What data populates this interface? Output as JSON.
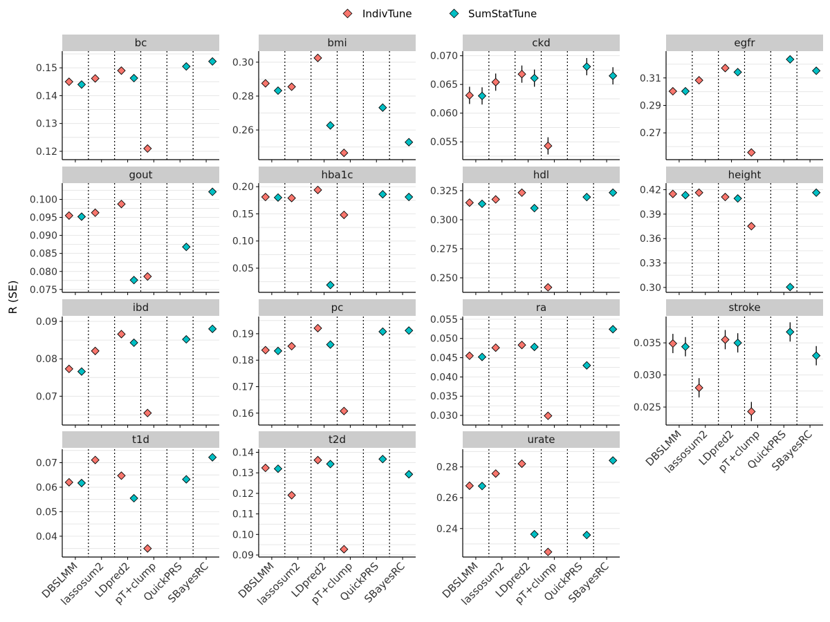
{
  "legend": {
    "position": "top",
    "items": [
      {
        "label": "IndivTune",
        "color": "#F8766D"
      },
      {
        "label": "SumStatTune",
        "color": "#00BFC4"
      }
    ]
  },
  "ylabel": "R (SE)",
  "methods": [
    "DBSLMM",
    "lassosum2",
    "LDpred2",
    "pT+clump",
    "QuickPRS",
    "SBayesRC"
  ],
  "colors": {
    "IndivTune": "#F8766D",
    "SumStatTune": "#00BFC4",
    "strip": "#cccccc",
    "grid": "#e6e6e6",
    "axis": "#000000"
  },
  "chart_data": [
    {
      "type": "scatter",
      "title": "bc",
      "ylim": [
        0.117,
        0.156
      ],
      "yticks": [
        0.12,
        0.13,
        0.14,
        0.15
      ],
      "ytick_labels": [
        "0.12",
        "0.13",
        "0.14",
        "0.15"
      ],
      "series": [
        {
          "name": "IndivTune",
          "values": [
            0.145,
            0.1462,
            0.149,
            0.121,
            null,
            null
          ],
          "se": [
            0.0012,
            0.0012,
            0.0012,
            0.0012,
            null,
            null
          ]
        },
        {
          "name": "SumStatTune",
          "values": [
            0.144,
            null,
            0.1463,
            null,
            0.1505,
            0.1523
          ],
          "se": [
            0.0012,
            null,
            0.0012,
            null,
            0.0012,
            0.0012
          ]
        }
      ]
    },
    {
      "type": "scatter",
      "title": "bmi",
      "ylim": [
        0.2425,
        0.3065
      ],
      "yticks": [
        0.26,
        0.28,
        0.3
      ],
      "ytick_labels": [
        "0.26",
        "0.28",
        "0.30"
      ],
      "series": [
        {
          "name": "IndivTune",
          "values": [
            0.2875,
            0.2855,
            0.3025,
            0.2465,
            null,
            null
          ],
          "se": [
            0.0006,
            0.0006,
            0.0006,
            0.0006,
            null,
            null
          ]
        },
        {
          "name": "SumStatTune",
          "values": [
            0.2832,
            null,
            0.2627,
            null,
            0.2732,
            0.2528
          ],
          "se": [
            0.0006,
            null,
            0.0006,
            null,
            0.0006,
            0.0006
          ]
        }
      ]
    },
    {
      "type": "scatter",
      "title": "ckd",
      "ylim": [
        0.0519,
        0.0708
      ],
      "yticks": [
        0.055,
        0.06,
        0.065,
        0.07
      ],
      "ytick_labels": [
        "0.055",
        "0.060",
        "0.065",
        "0.070"
      ],
      "series": [
        {
          "name": "IndivTune",
          "values": [
            0.0631,
            0.0654,
            0.0668,
            0.0543,
            null,
            null
          ],
          "se": [
            0.0015,
            0.0015,
            0.0015,
            0.0015,
            null,
            null
          ]
        },
        {
          "name": "SumStatTune",
          "values": [
            0.063,
            null,
            0.0661,
            null,
            0.0681,
            0.0665
          ],
          "se": [
            0.0015,
            null,
            0.0015,
            null,
            0.0015,
            0.0015
          ]
        }
      ]
    },
    {
      "type": "scatter",
      "title": "egfr",
      "ylim": [
        0.2505,
        0.3295
      ],
      "yticks": [
        0.27,
        0.29,
        0.31
      ],
      "ytick_labels": [
        "0.27",
        "0.29",
        "0.31"
      ],
      "series": [
        {
          "name": "IndivTune",
          "values": [
            0.3003,
            0.3083,
            0.3172,
            0.2557,
            null,
            null
          ],
          "se": [
            0.0005,
            0.0005,
            0.0005,
            0.0005,
            null,
            null
          ]
        },
        {
          "name": "SumStatTune",
          "values": [
            0.3003,
            null,
            0.3142,
            null,
            0.3235,
            0.3152
          ],
          "se": [
            0.0005,
            null,
            0.0005,
            null,
            0.0005,
            0.0005
          ]
        }
      ]
    },
    {
      "type": "scatter",
      "title": "gout",
      "ylim": [
        0.0742,
        0.1045
      ],
      "yticks": [
        0.075,
        0.08,
        0.085,
        0.09,
        0.095,
        0.1
      ],
      "ytick_labels": [
        "0.075",
        "0.080",
        "0.085",
        "0.090",
        "0.095",
        "0.100"
      ],
      "series": [
        {
          "name": "IndivTune",
          "values": [
            0.0955,
            0.0963,
            0.0987,
            0.0786,
            null,
            null
          ],
          "se": [
            0.0009,
            0.0009,
            0.0009,
            0.0009,
            null,
            null
          ]
        },
        {
          "name": "SumStatTune",
          "values": [
            0.0952,
            null,
            0.0776,
            null,
            0.0868,
            0.1021
          ],
          "se": [
            0.0009,
            null,
            0.0009,
            null,
            0.0009,
            0.0009
          ]
        }
      ]
    },
    {
      "type": "scatter",
      "title": "hba1c",
      "ylim": [
        0.0055,
        0.2065
      ],
      "yticks": [
        0.05,
        0.1,
        0.15,
        0.2
      ],
      "ytick_labels": [
        "0.05",
        "0.10",
        "0.15",
        "0.20"
      ],
      "series": [
        {
          "name": "IndivTune",
          "values": [
            0.181,
            0.179,
            0.194,
            0.148,
            null,
            null
          ],
          "se": [
            0.0014,
            0.0014,
            0.0014,
            0.0014,
            null,
            null
          ]
        },
        {
          "name": "SumStatTune",
          "values": [
            0.18,
            null,
            0.019,
            null,
            0.186,
            0.181
          ],
          "se": [
            0.0014,
            null,
            0.0014,
            null,
            0.0014,
            0.0014
          ]
        }
      ]
    },
    {
      "type": "scatter",
      "title": "hdl",
      "ylim": [
        0.2375,
        0.3315
      ],
      "yticks": [
        0.25,
        0.275,
        0.3,
        0.325
      ],
      "ytick_labels": [
        "0.250",
        "0.275",
        "0.300",
        "0.325"
      ],
      "series": [
        {
          "name": "IndivTune",
          "values": [
            0.3147,
            0.3175,
            0.3233,
            0.2418,
            null,
            null
          ],
          "se": [
            0.0005,
            0.0005,
            0.0005,
            0.0005,
            null,
            null
          ]
        },
        {
          "name": "SumStatTune",
          "values": [
            0.3137,
            null,
            0.31,
            null,
            0.3195,
            0.3233
          ],
          "se": [
            0.0005,
            null,
            0.0005,
            null,
            0.0005,
            0.0005
          ]
        }
      ]
    },
    {
      "type": "scatter",
      "title": "height",
      "ylim": [
        0.294,
        0.428
      ],
      "yticks": [
        0.3,
        0.33,
        0.36,
        0.39,
        0.42
      ],
      "ytick_labels": [
        "0.30",
        "0.33",
        "0.36",
        "0.39",
        "0.42"
      ],
      "series": [
        {
          "name": "IndivTune",
          "values": [
            0.4148,
            0.4163,
            0.411,
            0.3752,
            null,
            null
          ],
          "se": [
            0.0004,
            0.0004,
            0.0004,
            0.0004,
            null,
            null
          ]
        },
        {
          "name": "SumStatTune",
          "values": [
            0.4133,
            null,
            0.4092,
            null,
            0.3005,
            0.4163
          ],
          "se": [
            0.0004,
            null,
            0.0004,
            null,
            0.0004,
            0.0004
          ]
        }
      ]
    },
    {
      "type": "scatter",
      "title": "ibd",
      "ylim": [
        0.0623,
        0.0913
      ],
      "yticks": [
        0.07,
        0.08,
        0.09
      ],
      "ytick_labels": [
        "0.07",
        "0.08",
        "0.09"
      ],
      "series": [
        {
          "name": "IndivTune",
          "values": [
            0.0773,
            0.0821,
            0.0866,
            0.0655,
            null,
            null
          ],
          "se": [
            0.0009,
            0.0009,
            0.0009,
            0.0009,
            null,
            null
          ]
        },
        {
          "name": "SumStatTune",
          "values": [
            0.0766,
            null,
            0.0843,
            null,
            0.0852,
            0.088
          ],
          "se": [
            0.0009,
            null,
            0.0009,
            null,
            0.0009,
            0.0009
          ]
        }
      ]
    },
    {
      "type": "scatter",
      "title": "pc",
      "ylim": [
        0.1555,
        0.1965
      ],
      "yticks": [
        0.16,
        0.17,
        0.18,
        0.19
      ],
      "ytick_labels": [
        "0.16",
        "0.17",
        "0.18",
        "0.19"
      ],
      "series": [
        {
          "name": "IndivTune",
          "values": [
            0.1838,
            0.1853,
            0.1921,
            0.1608,
            null,
            null
          ],
          "se": [
            0.0012,
            0.0012,
            0.0012,
            0.0012,
            null,
            null
          ]
        },
        {
          "name": "SumStatTune",
          "values": [
            0.1835,
            null,
            0.1859,
            null,
            0.1908,
            0.1912
          ],
          "se": [
            0.0012,
            null,
            0.0012,
            null,
            0.0012,
            0.0012
          ]
        }
      ]
    },
    {
      "type": "scatter",
      "title": "ra",
      "ylim": [
        0.0275,
        0.0557
      ],
      "yticks": [
        0.03,
        0.035,
        0.04,
        0.045,
        0.05,
        0.055
      ],
      "ytick_labels": [
        "0.030",
        "0.035",
        "0.040",
        "0.045",
        "0.050",
        "0.055"
      ],
      "series": [
        {
          "name": "IndivTune",
          "values": [
            0.0455,
            0.0476,
            0.0483,
            0.0299,
            null,
            null
          ],
          "se": [
            0.0009,
            0.0009,
            0.0009,
            0.0009,
            null,
            null
          ]
        },
        {
          "name": "SumStatTune",
          "values": [
            0.0452,
            null,
            0.0478,
            null,
            0.043,
            0.0524
          ],
          "se": [
            0.0009,
            null,
            0.0009,
            null,
            0.0009,
            0.0009
          ]
        }
      ]
    },
    {
      "type": "scatter",
      "title": "stroke",
      "ylim": [
        0.0222,
        0.0391
      ],
      "yticks": [
        0.025,
        0.03,
        0.035
      ],
      "ytick_labels": [
        "0.025",
        "0.030",
        "0.035"
      ],
      "series": [
        {
          "name": "IndivTune",
          "values": [
            0.0349,
            0.028,
            0.0355,
            0.0243,
            null,
            null
          ],
          "se": [
            0.0015,
            0.0015,
            0.0015,
            0.0015,
            null,
            null
          ]
        },
        {
          "name": "SumStatTune",
          "values": [
            0.0344,
            null,
            0.035,
            null,
            0.0367,
            0.033
          ],
          "se": [
            0.0015,
            null,
            0.0015,
            null,
            0.0015,
            0.0015
          ]
        }
      ]
    },
    {
      "type": "scatter",
      "title": "t1d",
      "ylim": [
        0.0315,
        0.0755
      ],
      "yticks": [
        0.04,
        0.05,
        0.06,
        0.07
      ],
      "ytick_labels": [
        "0.04",
        "0.05",
        "0.06",
        "0.07"
      ],
      "series": [
        {
          "name": "IndivTune",
          "values": [
            0.062,
            0.0711,
            0.0647,
            0.035,
            null,
            null
          ],
          "se": [
            0.0005,
            0.0005,
            0.0005,
            0.0005,
            null,
            null
          ]
        },
        {
          "name": "SumStatTune",
          "values": [
            0.0617,
            null,
            0.0555,
            null,
            0.0632,
            0.0722
          ],
          "se": [
            0.0005,
            null,
            0.0005,
            null,
            0.0005,
            0.0005
          ]
        }
      ]
    },
    {
      "type": "scatter",
      "title": "t2d",
      "ylim": [
        0.089,
        0.1415
      ],
      "yticks": [
        0.09,
        0.1,
        0.11,
        0.12,
        0.13,
        0.14
      ],
      "ytick_labels": [
        "0.09",
        "0.10",
        "0.11",
        "0.12",
        "0.13",
        "0.14"
      ],
      "series": [
        {
          "name": "IndivTune",
          "values": [
            0.1324,
            0.1191,
            0.1362,
            0.0928,
            null,
            null
          ],
          "se": [
            0.0005,
            0.0005,
            0.0005,
            0.0005,
            null,
            null
          ]
        },
        {
          "name": "SumStatTune",
          "values": [
            0.132,
            null,
            0.1343,
            null,
            0.1367,
            0.1293
          ],
          "se": [
            0.0005,
            null,
            0.0005,
            null,
            0.0005,
            0.0005
          ]
        }
      ]
    },
    {
      "type": "scatter",
      "title": "urate",
      "ylim": [
        0.2215,
        0.2915
      ],
      "yticks": [
        0.24,
        0.26,
        0.28
      ],
      "ytick_labels": [
        "0.24",
        "0.26",
        "0.28"
      ],
      "series": [
        {
          "name": "IndivTune",
          "values": [
            0.2678,
            0.2757,
            0.2821,
            0.2248,
            null,
            null
          ],
          "se": [
            0.0005,
            0.0005,
            0.0005,
            0.0005,
            null,
            null
          ]
        },
        {
          "name": "SumStatTune",
          "values": [
            0.2676,
            null,
            0.2363,
            null,
            0.2358,
            0.2842
          ],
          "se": [
            0.0005,
            null,
            0.0005,
            null,
            0.0005,
            0.0005
          ]
        }
      ]
    }
  ]
}
